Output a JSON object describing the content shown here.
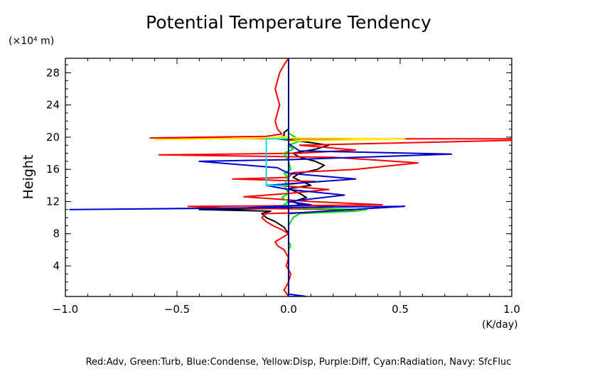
{
  "chart_data": {
    "type": "line",
    "title": "Potential Temperature Tendency",
    "ylabel": "Height",
    "y_unit_label": "(×10⁴ m)",
    "x_unit_label": "(K/day)",
    "footer": "Red:Adv, Green:Turb, Blue:Condense, Yellow:Disp, Purple:Diff, Cyan:Radiation, Navy: SfcFluc",
    "xlim": [
      -1.0,
      1.0
    ],
    "ylim": [
      0.2,
      29.8
    ],
    "x_ticks": [
      {
        "value": -1.0,
        "label": "−1.0"
      },
      {
        "value": -0.5,
        "label": "−0.5"
      },
      {
        "value": 0.0,
        "label": "0.0"
      },
      {
        "value": 0.5,
        "label": "0.5"
      },
      {
        "value": 1.0,
        "label": "1.0"
      }
    ],
    "x_minor_step": 0.1,
    "y_ticks": [
      {
        "value": 4,
        "label": "4"
      },
      {
        "value": 8,
        "label": "8"
      },
      {
        "value": 12,
        "label": "12"
      },
      {
        "value": 16,
        "label": "16"
      },
      {
        "value": 20,
        "label": "20"
      },
      {
        "value": 24,
        "label": "24"
      },
      {
        "value": 28,
        "label": "28"
      }
    ],
    "y_minor_step": 1,
    "grid": false,
    "series": [
      {
        "color": "#000000",
        "points": [
          [
            0.0,
            0.2
          ],
          [
            0.0,
            8.0
          ],
          [
            -0.02,
            8.8
          ],
          [
            -0.06,
            9.5
          ],
          [
            -0.1,
            10.0
          ],
          [
            -0.12,
            10.5
          ],
          [
            -0.08,
            10.8
          ],
          [
            -0.4,
            11.0
          ],
          [
            0.1,
            11.2
          ],
          [
            0.2,
            11.4
          ],
          [
            0.05,
            11.6
          ],
          [
            0.02,
            12.0
          ],
          [
            0.08,
            12.5
          ],
          [
            0.05,
            13.0
          ],
          [
            0.0,
            13.6
          ],
          [
            0.1,
            14.0
          ],
          [
            0.05,
            14.6
          ],
          [
            0.02,
            15.0
          ],
          [
            0.05,
            15.5
          ],
          [
            0.13,
            16.0
          ],
          [
            0.16,
            16.5
          ],
          [
            0.12,
            17.0
          ],
          [
            0.05,
            17.5
          ],
          [
            0.02,
            18.0
          ],
          [
            0.12,
            18.5
          ],
          [
            0.18,
            19.0
          ],
          [
            0.08,
            19.4
          ],
          [
            -0.05,
            19.8
          ],
          [
            -0.02,
            20.2
          ],
          [
            -0.02,
            20.6
          ],
          [
            0.0,
            21.0
          ],
          [
            0.0,
            29.8
          ]
        ]
      },
      {
        "color": "#ff0000",
        "points": [
          [
            0.0,
            0.2
          ],
          [
            -0.02,
            1.0
          ],
          [
            0.0,
            2.0
          ],
          [
            0.01,
            3.0
          ],
          [
            -0.01,
            4.0
          ],
          [
            0.0,
            5.0
          ],
          [
            -0.02,
            6.0
          ],
          [
            -0.05,
            6.5
          ],
          [
            -0.06,
            7.0
          ],
          [
            -0.03,
            7.5
          ],
          [
            0.0,
            8.0
          ],
          [
            -0.03,
            8.5
          ],
          [
            -0.07,
            9.0
          ],
          [
            -0.1,
            9.5
          ],
          [
            -0.12,
            10.0
          ],
          [
            -0.1,
            10.5
          ],
          [
            0.3,
            10.8
          ],
          [
            0.25,
            11.0
          ],
          [
            -0.3,
            11.2
          ],
          [
            -0.45,
            11.4
          ],
          [
            0.1,
            11.5
          ],
          [
            0.42,
            11.6
          ],
          [
            0.1,
            12.0
          ],
          [
            -0.2,
            12.6
          ],
          [
            0.0,
            13.0
          ],
          [
            0.18,
            13.5
          ],
          [
            -0.05,
            14.0
          ],
          [
            0.12,
            14.5
          ],
          [
            -0.25,
            14.8
          ],
          [
            0.0,
            15.0
          ],
          [
            0.02,
            15.6
          ],
          [
            0.3,
            16.0
          ],
          [
            0.58,
            16.8
          ],
          [
            0.2,
            17.5
          ],
          [
            -0.58,
            17.8
          ],
          [
            0.05,
            18.0
          ],
          [
            0.3,
            18.4
          ],
          [
            0.05,
            19.0
          ],
          [
            1.0,
            19.6
          ],
          [
            1.0,
            19.8
          ],
          [
            0.05,
            19.8
          ],
          [
            -0.62,
            19.9
          ],
          [
            -0.1,
            20.1
          ],
          [
            -0.03,
            20.4
          ],
          [
            -0.05,
            21.0
          ],
          [
            -0.06,
            22.0
          ],
          [
            -0.05,
            23.0
          ],
          [
            -0.04,
            24.0
          ],
          [
            -0.05,
            25.0
          ],
          [
            -0.06,
            26.0
          ],
          [
            -0.05,
            27.0
          ],
          [
            -0.04,
            28.0
          ],
          [
            -0.02,
            29.0
          ],
          [
            0.0,
            29.8
          ]
        ]
      },
      {
        "color": "#00dd00",
        "points": [
          [
            0.0,
            0.2
          ],
          [
            0.0,
            6.0
          ],
          [
            0.01,
            6.5
          ],
          [
            0.0,
            7.0
          ],
          [
            0.0,
            9.0
          ],
          [
            0.02,
            10.0
          ],
          [
            0.05,
            10.5
          ],
          [
            0.3,
            10.8
          ],
          [
            0.35,
            11.0
          ],
          [
            0.02,
            11.2
          ],
          [
            -0.02,
            11.6
          ],
          [
            0.0,
            12.0
          ],
          [
            -0.03,
            12.5
          ],
          [
            0.0,
            13.0
          ],
          [
            -0.02,
            14.0
          ],
          [
            0.0,
            15.0
          ],
          [
            -0.02,
            15.5
          ],
          [
            0.01,
            16.0
          ],
          [
            0.0,
            17.0
          ],
          [
            -0.02,
            18.0
          ],
          [
            0.02,
            18.5
          ],
          [
            0.0,
            19.0
          ],
          [
            0.05,
            19.5
          ],
          [
            0.03,
            20.0
          ],
          [
            0.0,
            20.5
          ],
          [
            0.0,
            29.8
          ]
        ]
      },
      {
        "color": "#0000cc",
        "points": [
          [
            0.0,
            0.2
          ],
          [
            0.08,
            0.2
          ],
          [
            0.0,
            0.5
          ],
          [
            0.0,
            10.5
          ],
          [
            0.1,
            10.7
          ],
          [
            0.52,
            11.4
          ],
          [
            -0.98,
            11.0
          ],
          [
            -0.2,
            11.2
          ],
          [
            0.1,
            11.6
          ],
          [
            0.0,
            12.0
          ],
          [
            0.25,
            12.8
          ],
          [
            0.0,
            13.5
          ],
          [
            -0.1,
            14.0
          ],
          [
            0.05,
            14.3
          ],
          [
            0.3,
            14.8
          ],
          [
            0.0,
            15.5
          ],
          [
            -0.05,
            16.2
          ],
          [
            -0.4,
            17.0
          ],
          [
            0.0,
            17.2
          ],
          [
            0.73,
            17.9
          ],
          [
            0.05,
            18.3
          ],
          [
            0.02,
            18.8
          ],
          [
            0.0,
            19.2
          ],
          [
            0.0,
            29.8
          ]
        ]
      },
      {
        "color": "#ffee00",
        "points": [
          [
            0.0,
            19.5
          ],
          [
            0.52,
            19.8
          ],
          [
            -0.05,
            19.9
          ],
          [
            -0.6,
            19.7
          ],
          [
            -0.1,
            19.9
          ],
          [
            0.0,
            20.1
          ]
        ]
      },
      {
        "color": "#00dddd",
        "points": [
          [
            0.0,
            14.0
          ],
          [
            -0.1,
            14.0
          ],
          [
            -0.1,
            19.8
          ],
          [
            0.0,
            19.8
          ]
        ]
      },
      {
        "color": "#000080",
        "points": [
          [
            0.0,
            0.2
          ],
          [
            0.0,
            29.8
          ]
        ]
      }
    ]
  }
}
